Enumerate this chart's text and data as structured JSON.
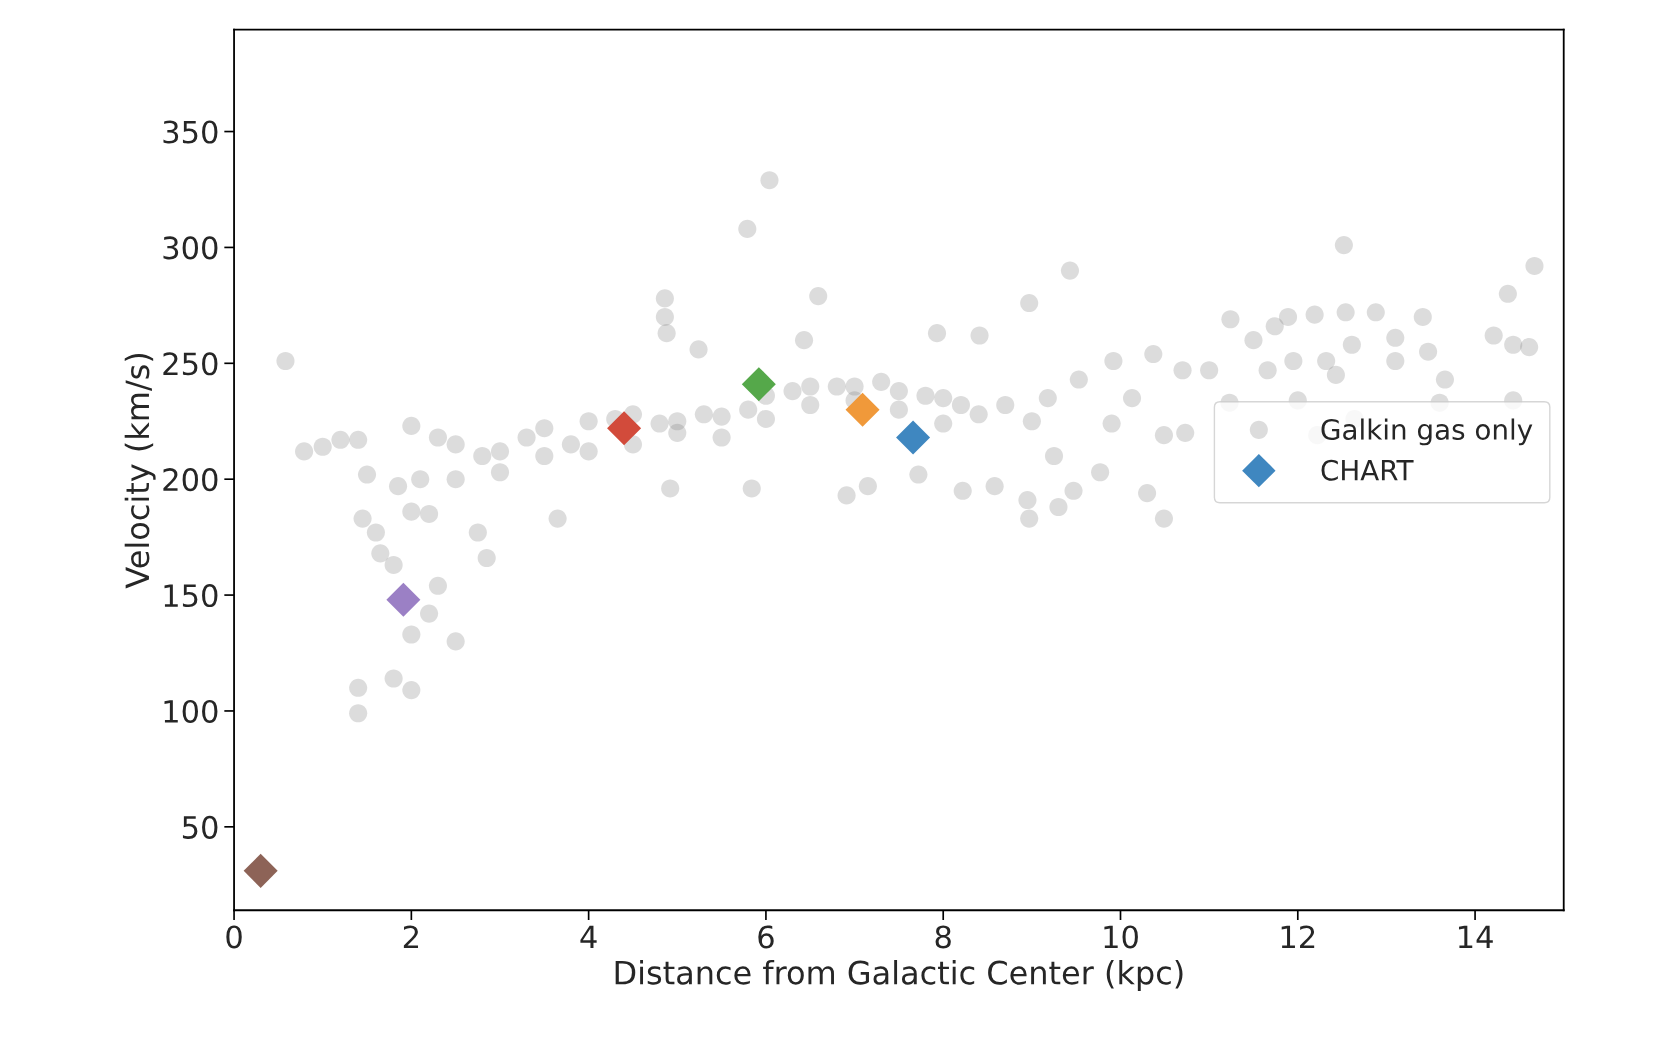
{
  "chart_data": {
    "type": "scatter",
    "xlabel": "Distance from Galactic Center (kpc)",
    "ylabel": "Velocity (km/s)",
    "xlim": [
      0,
      15
    ],
    "ylim": [
      14,
      394
    ],
    "xticks": [
      0,
      2,
      4,
      6,
      8,
      10,
      12,
      14
    ],
    "yticks": [
      50,
      100,
      150,
      200,
      250,
      300,
      350
    ],
    "grid": false,
    "legend": "right",
    "series": [
      {
        "name": "Galkin gas only",
        "marker": "circle",
        "color": "#808080",
        "x": [
          0.58,
          0.79,
          1.0,
          1.2,
          1.4,
          1.5,
          1.45,
          1.6,
          1.65,
          1.8,
          1.85,
          2.0,
          2.2,
          2.3,
          2.2,
          2.0,
          2.5,
          1.4,
          1.4,
          1.8,
          2.0,
          2.85,
          3.65,
          2.75,
          2.0,
          2.1,
          2.3,
          2.5,
          2.5,
          2.8,
          3.0,
          3.0,
          3.3,
          3.5,
          3.5,
          3.8,
          4.0,
          4.0,
          4.3,
          4.5,
          4.5,
          4.8,
          5.0,
          5.0,
          5.3,
          5.5,
          5.5,
          5.8,
          6.0,
          6.0,
          6.3,
          6.5,
          6.5,
          6.8,
          7.0,
          7.0,
          7.3,
          7.5,
          7.5,
          7.8,
          8.0,
          8.0,
          8.2,
          8.4,
          8.7,
          9.0,
          5.79,
          6.04,
          4.86,
          4.86,
          4.88,
          6.59,
          5.24,
          6.43,
          5.84,
          4.92,
          6.91,
          7.15,
          7.72,
          7.93,
          8.41,
          8.22,
          8.58,
          8.97,
          9.43,
          8.97,
          8.95,
          9.3,
          9.25,
          9.18,
          9.53,
          9.92,
          9.9,
          10.13,
          10.37,
          10.49,
          10.7,
          10.73,
          11.0,
          11.24,
          11.23,
          11.5,
          11.66,
          11.74,
          11.89,
          11.95,
          12.0,
          12.22,
          12.19,
          12.32,
          12.43,
          12.52,
          12.54,
          12.61,
          12.64,
          12.88,
          13.1,
          13.1,
          13.41,
          13.47,
          13.6,
          13.66,
          14.21,
          14.37,
          14.43,
          14.61,
          14.67,
          14.43,
          10.3,
          10.49,
          9.77,
          9.47
        ],
        "values": [
          251,
          212,
          214,
          217,
          217,
          202,
          183,
          177,
          168,
          163,
          197,
          186,
          185,
          154,
          142,
          133,
          130,
          110,
          99,
          114,
          109,
          166,
          183,
          177,
          223,
          200,
          218,
          215,
          200,
          210,
          212,
          203,
          218,
          222,
          210,
          215,
          225,
          212,
          226,
          228,
          215,
          224,
          225,
          220,
          228,
          227,
          218,
          230,
          236,
          226,
          238,
          240,
          232,
          240,
          240,
          234,
          242,
          238,
          230,
          236,
          235,
          224,
          232,
          228,
          232,
          225,
          308,
          329,
          278,
          270,
          263,
          279,
          256,
          260,
          196,
          196,
          193,
          197,
          202,
          263,
          262,
          195,
          197,
          276,
          290,
          183,
          191,
          188,
          210,
          235,
          243,
          251,
          224,
          235,
          254,
          219,
          247,
          220,
          247,
          269,
          233,
          260,
          247,
          266,
          270,
          251,
          234,
          219,
          271,
          251,
          245,
          301,
          272,
          258,
          226,
          272,
          261,
          251,
          270,
          255,
          233,
          243,
          262,
          280,
          234,
          257,
          292,
          258,
          194,
          183,
          203,
          195
        ]
      },
      {
        "name": "CHART",
        "marker": "diamond",
        "colors": [
          "#3f87c0",
          "#f0993a",
          "#55a84a",
          "#d24b3b",
          "#9b80c5",
          "#8d6357"
        ],
        "x": [
          7.66,
          7.09,
          5.92,
          4.4,
          1.91,
          0.3
        ],
        "values": [
          218,
          230,
          241,
          222,
          148,
          31
        ]
      }
    ]
  }
}
